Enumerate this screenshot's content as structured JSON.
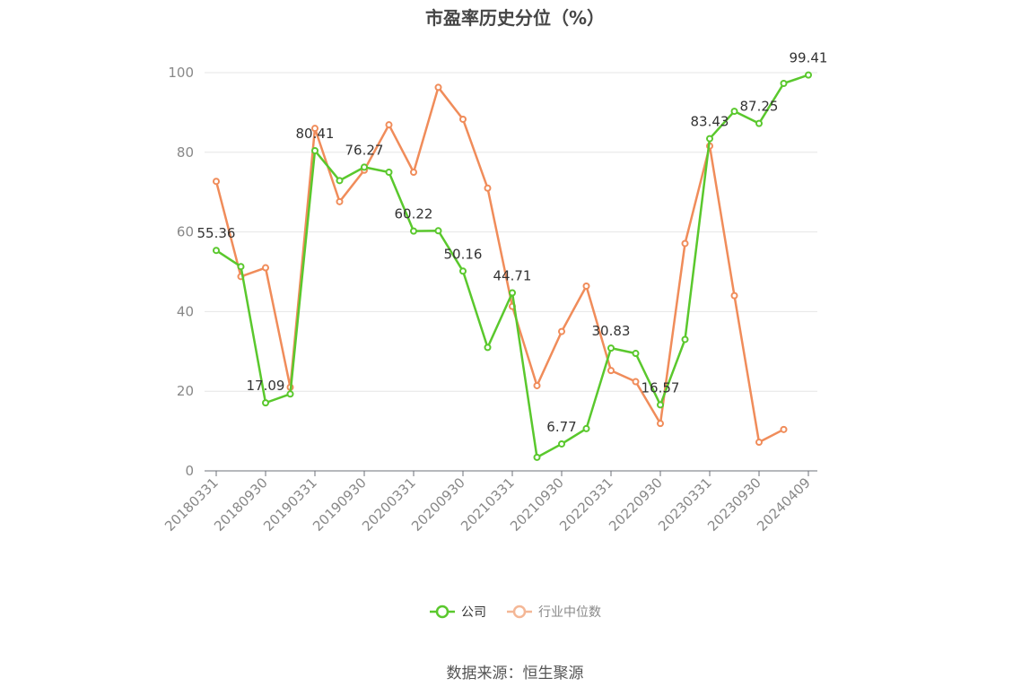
{
  "chart_data": {
    "type": "line",
    "title": "市盈率历史分位（%）",
    "ylim": [
      0,
      100
    ],
    "yticks": [
      0,
      20,
      40,
      60,
      80,
      100
    ],
    "grid": true,
    "legend_position": "bottom",
    "x": [
      "20180331",
      "20180630",
      "20180930",
      "20181231",
      "20190331",
      "20190630",
      "20190930",
      "20191231",
      "20200331",
      "20200630",
      "20200930",
      "20201231",
      "20210331",
      "20210630",
      "20210930",
      "20211231",
      "20220331",
      "20220630",
      "20220930",
      "20221231",
      "20230331",
      "20230630",
      "20230930",
      "20231231",
      "20240409"
    ],
    "xtick_labels": [
      "20180331",
      "20180930",
      "20190331",
      "20190930",
      "20200331",
      "20200930",
      "20210331",
      "20210930",
      "20220331",
      "20220930",
      "20230331",
      "20230930",
      "20240409"
    ],
    "series": [
      {
        "name": "公司",
        "color": "#5ac82d",
        "values": [
          55.36,
          51.3,
          17.09,
          19.3,
          80.41,
          72.9,
          76.27,
          75.0,
          60.22,
          60.3,
          50.16,
          31.0,
          44.71,
          3.4,
          6.77,
          10.6,
          30.83,
          29.5,
          16.57,
          33.0,
          83.43,
          90.3,
          87.25,
          97.3,
          99.41
        ],
        "labeled_values": [
          {
            "index": 0,
            "text": "55.36"
          },
          {
            "index": 2,
            "text": "17.09"
          },
          {
            "index": 4,
            "text": "80.41"
          },
          {
            "index": 6,
            "text": "76.27"
          },
          {
            "index": 8,
            "text": "60.22"
          },
          {
            "index": 10,
            "text": "50.16"
          },
          {
            "index": 12,
            "text": "44.71"
          },
          {
            "index": 14,
            "text": "6.77"
          },
          {
            "index": 16,
            "text": "30.83"
          },
          {
            "index": 18,
            "text": "16.57"
          },
          {
            "index": 20,
            "text": "83.43"
          },
          {
            "index": 22,
            "text": "87.25"
          },
          {
            "index": 24,
            "text": "99.41"
          }
        ]
      },
      {
        "name": "行业中位数",
        "color": "#f08c5a",
        "values": [
          72.7,
          48.8,
          51.0,
          21.0,
          86.0,
          67.6,
          75.5,
          86.9,
          75.0,
          96.3,
          88.3,
          71.0,
          41.3,
          21.4,
          35.0,
          46.4,
          25.2,
          22.4,
          11.9,
          57.1,
          81.6,
          44.0,
          7.2,
          10.4,
          null
        ]
      }
    ]
  },
  "legend": [
    {
      "label": "公司",
      "color": "#5ac82d",
      "text_color": "#333333"
    },
    {
      "label": "行业中位数",
      "color": "#f08c5a",
      "text_color": "#888888"
    }
  ],
  "source": "数据来源：恒生聚源"
}
